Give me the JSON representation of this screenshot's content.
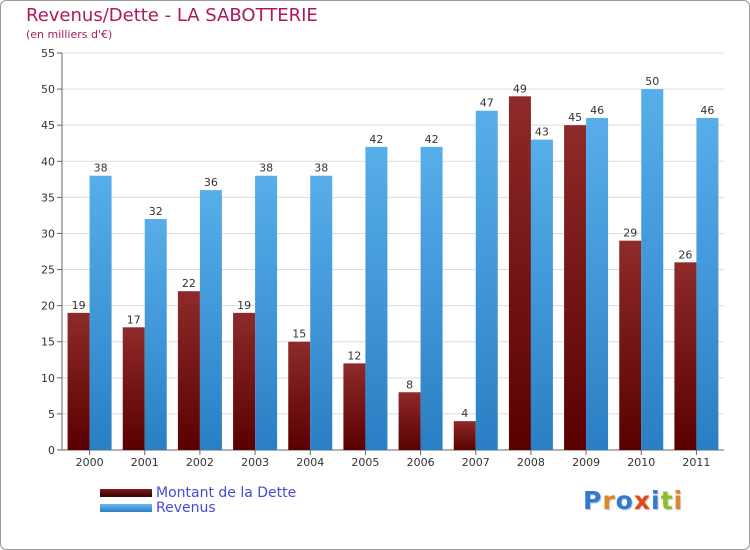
{
  "chart_data": {
    "type": "bar",
    "title": "Revenus/Dette - LA SABOTTERIE",
    "subtitle": "(en milliers d'€)",
    "categories": [
      "2000",
      "2001",
      "2002",
      "2003",
      "2004",
      "2005",
      "2006",
      "2007",
      "2008",
      "2009",
      "2010",
      "2011"
    ],
    "series": [
      {
        "name": "Montant de la Dette",
        "color": "#7a1a1a",
        "values": [
          19,
          17,
          22,
          19,
          15,
          12,
          8,
          4,
          49,
          45,
          29,
          26
        ]
      },
      {
        "name": "Revenus",
        "color": "#3a9de8",
        "values": [
          38,
          32,
          36,
          38,
          38,
          42,
          42,
          47,
          43,
          46,
          50,
          46
        ]
      }
    ],
    "ylim": [
      0,
      55
    ],
    "yticks": [
      0,
      5,
      10,
      15,
      20,
      25,
      30,
      35,
      40,
      45,
      50,
      55
    ],
    "grid": true,
    "legend": "bottom-left"
  },
  "branding": {
    "logo_letters": [
      {
        "ch": "P",
        "color": "#2e7bd1"
      },
      {
        "ch": "r",
        "color": "#e0862a"
      },
      {
        "ch": "o",
        "color": "#2e7bd1"
      },
      {
        "ch": "x",
        "color": "#e04a1a"
      },
      {
        "ch": "i",
        "color": "#2e7bd1"
      },
      {
        "ch": "t",
        "color": "#8cbf2a"
      },
      {
        "ch": "i",
        "color": "#e0862a"
      }
    ]
  }
}
